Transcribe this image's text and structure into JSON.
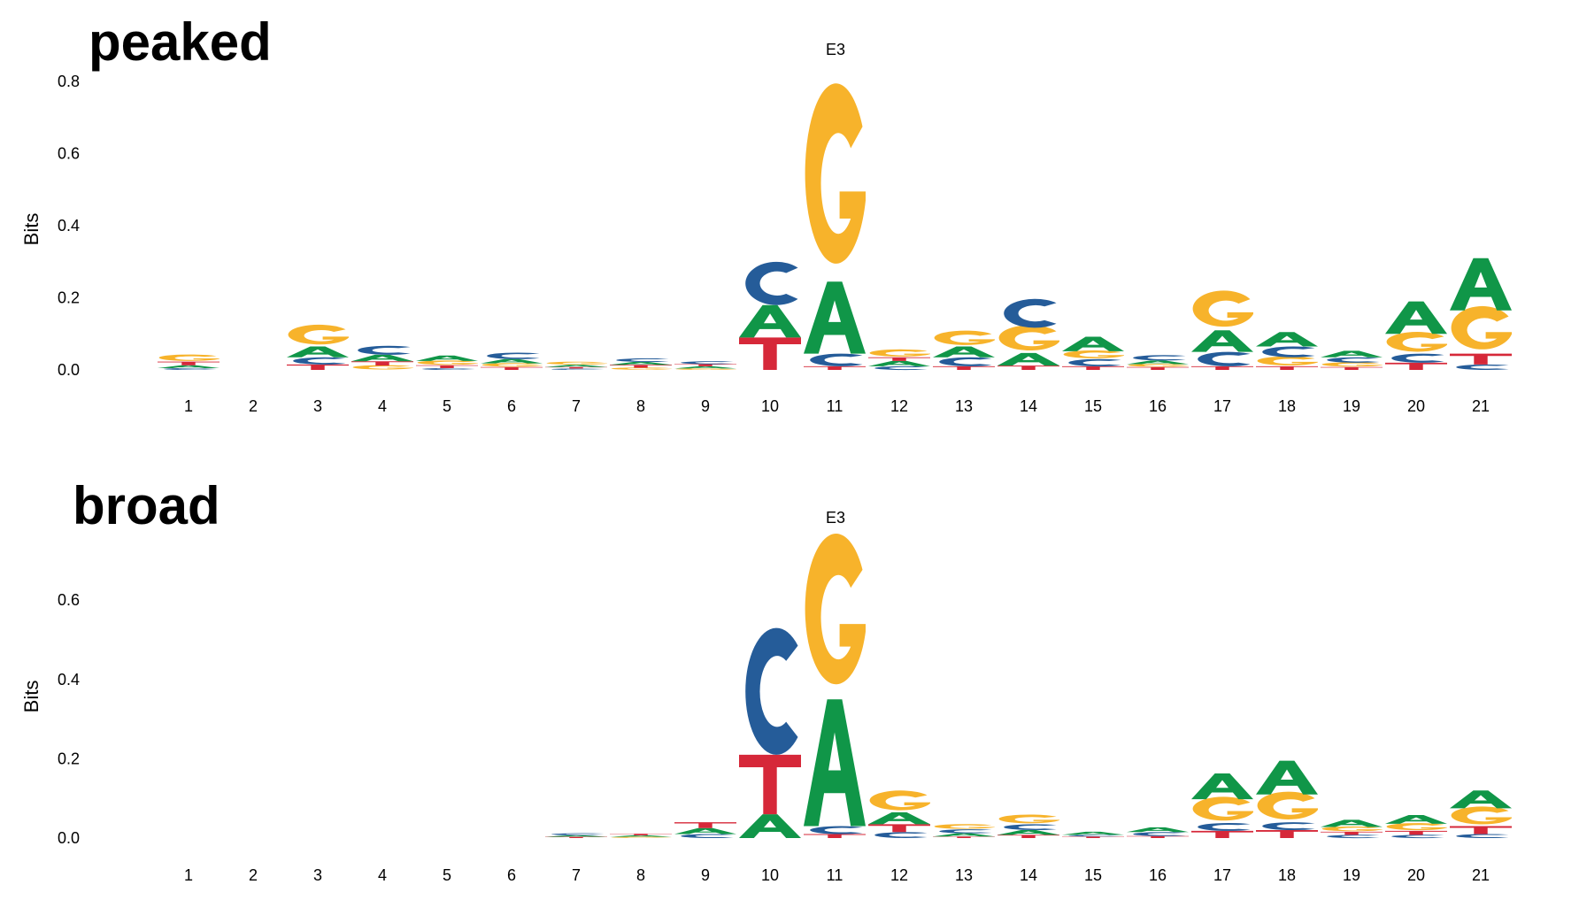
{
  "colors": {
    "A": "#109648",
    "C": "#255C99",
    "G": "#F7B32B",
    "T": "#D62839"
  },
  "chart_data": [
    {
      "type": "sequence-logo",
      "panel_label": "peaked",
      "title": "E3",
      "ylabel": "Bits",
      "ylim": [
        0,
        0.83
      ],
      "yticks": [
        "0.0",
        "0.2",
        "0.4",
        "0.6",
        "0.8"
      ],
      "ytick_values": [
        0,
        0.2,
        0.4,
        0.6,
        0.8
      ],
      "positions": [
        "1",
        "2",
        "3",
        "4",
        "5",
        "6",
        "7",
        "8",
        "9",
        "10",
        "11",
        "12",
        "13",
        "14",
        "15",
        "16",
        "17",
        "18",
        "19",
        "20",
        "21"
      ],
      "stacks": [
        [
          {
            "b": "C",
            "h": 0.005
          },
          {
            "b": "A",
            "h": 0.008
          },
          {
            "b": "T",
            "h": 0.01
          },
          {
            "b": "G",
            "h": 0.018
          }
        ],
        [],
        [
          {
            "b": "T",
            "h": 0.015
          },
          {
            "b": "C",
            "h": 0.02
          },
          {
            "b": "A",
            "h": 0.03
          },
          {
            "b": "G",
            "h": 0.055
          }
        ],
        [
          {
            "b": "G",
            "h": 0.012
          },
          {
            "b": "T",
            "h": 0.012
          },
          {
            "b": "A",
            "h": 0.018
          },
          {
            "b": "C",
            "h": 0.025
          }
        ],
        [
          {
            "b": "C",
            "h": 0.005
          },
          {
            "b": "T",
            "h": 0.008
          },
          {
            "b": "G",
            "h": 0.012
          },
          {
            "b": "A",
            "h": 0.015
          }
        ],
        [
          {
            "b": "T",
            "h": 0.008
          },
          {
            "b": "G",
            "h": 0.01
          },
          {
            "b": "A",
            "h": 0.012
          },
          {
            "b": "C",
            "h": 0.018
          }
        ],
        [
          {
            "b": "C",
            "h": 0.004
          },
          {
            "b": "T",
            "h": 0.004
          },
          {
            "b": "A",
            "h": 0.006
          },
          {
            "b": "G",
            "h": 0.008
          }
        ],
        [
          {
            "b": "G",
            "h": 0.006
          },
          {
            "b": "T",
            "h": 0.008
          },
          {
            "b": "A",
            "h": 0.008
          },
          {
            "b": "C",
            "h": 0.01
          }
        ],
        [
          {
            "b": "G",
            "h": 0.004
          },
          {
            "b": "A",
            "h": 0.006
          },
          {
            "b": "T",
            "h": 0.006
          },
          {
            "b": "C",
            "h": 0.008
          }
        ],
        [
          {
            "b": "T",
            "h": 0.09
          },
          {
            "b": "A",
            "h": 0.09
          },
          {
            "b": "C",
            "h": 0.12
          }
        ],
        [
          {
            "b": "T",
            "h": 0.01
          },
          {
            "b": "C",
            "h": 0.035
          },
          {
            "b": "A",
            "h": 0.2
          },
          {
            "b": "G",
            "h": 0.5
          }
        ],
        [
          {
            "b": "C",
            "h": 0.01
          },
          {
            "b": "A",
            "h": 0.015
          },
          {
            "b": "T",
            "h": 0.01
          },
          {
            "b": "G",
            "h": 0.02
          }
        ],
        [
          {
            "b": "T",
            "h": 0.01
          },
          {
            "b": "C",
            "h": 0.025
          },
          {
            "b": "A",
            "h": 0.03
          },
          {
            "b": "G",
            "h": 0.04
          }
        ],
        [
          {
            "b": "T",
            "h": 0.012
          },
          {
            "b": "A",
            "h": 0.035
          },
          {
            "b": "G",
            "h": 0.07
          },
          {
            "b": "C",
            "h": 0.08
          }
        ],
        [
          {
            "b": "T",
            "h": 0.01
          },
          {
            "b": "C",
            "h": 0.02
          },
          {
            "b": "G",
            "h": 0.022
          },
          {
            "b": "A",
            "h": 0.04
          }
        ],
        [
          {
            "b": "T",
            "h": 0.008
          },
          {
            "b": "G",
            "h": 0.008
          },
          {
            "b": "A",
            "h": 0.01
          },
          {
            "b": "C",
            "h": 0.015
          }
        ],
        [
          {
            "b": "T",
            "h": 0.01
          },
          {
            "b": "C",
            "h": 0.04
          },
          {
            "b": "A",
            "h": 0.06
          },
          {
            "b": "G",
            "h": 0.1
          }
        ],
        [
          {
            "b": "T",
            "h": 0.01
          },
          {
            "b": "G",
            "h": 0.025
          },
          {
            "b": "C",
            "h": 0.03
          },
          {
            "b": "A",
            "h": 0.04
          }
        ],
        [
          {
            "b": "T",
            "h": 0.008
          },
          {
            "b": "G",
            "h": 0.012
          },
          {
            "b": "C",
            "h": 0.015
          },
          {
            "b": "A",
            "h": 0.018
          }
        ],
        [
          {
            "b": "T",
            "h": 0.02
          },
          {
            "b": "C",
            "h": 0.025
          },
          {
            "b": "G",
            "h": 0.055
          },
          {
            "b": "A",
            "h": 0.09
          }
        ],
        [
          {
            "b": "C",
            "h": 0.015
          },
          {
            "b": "T",
            "h": 0.03
          },
          {
            "b": "G",
            "h": 0.12
          },
          {
            "b": "A",
            "h": 0.145
          }
        ]
      ]
    },
    {
      "type": "sequence-logo",
      "panel_label": "broad",
      "title": "E3",
      "ylabel": "Bits",
      "ylim": [
        0,
        0.73
      ],
      "yticks": [
        "0.0",
        "0.2",
        "0.4",
        "0.6"
      ],
      "ytick_values": [
        0,
        0.2,
        0.4,
        0.6
      ],
      "positions": [
        "1",
        "2",
        "3",
        "4",
        "5",
        "6",
        "7",
        "8",
        "9",
        "10",
        "11",
        "12",
        "13",
        "14",
        "15",
        "16",
        "17",
        "18",
        "19",
        "20",
        "21"
      ],
      "stacks": [
        [],
        [],
        [],
        [],
        [],
        [],
        [
          {
            "b": "T",
            "h": 0.003
          },
          {
            "b": "A",
            "h": 0.004
          },
          {
            "b": "C",
            "h": 0.005
          }
        ],
        [
          {
            "b": "G",
            "h": 0.003
          },
          {
            "b": "A",
            "h": 0.004
          },
          {
            "b": "T",
            "h": 0.004
          }
        ],
        [
          {
            "b": "C",
            "h": 0.01
          },
          {
            "b": "A",
            "h": 0.015
          },
          {
            "b": "T",
            "h": 0.015
          }
        ],
        [
          {
            "b": "A",
            "h": 0.06
          },
          {
            "b": "T",
            "h": 0.15
          },
          {
            "b": "C",
            "h": 0.32
          }
        ],
        [
          {
            "b": "T",
            "h": 0.01
          },
          {
            "b": "C",
            "h": 0.02
          },
          {
            "b": "A",
            "h": 0.32
          },
          {
            "b": "G",
            "h": 0.38
          }
        ],
        [
          {
            "b": "C",
            "h": 0.015
          },
          {
            "b": "T",
            "h": 0.02
          },
          {
            "b": "A",
            "h": 0.03
          },
          {
            "b": "G",
            "h": 0.05
          }
        ],
        [
          {
            "b": "T",
            "h": 0.004
          },
          {
            "b": "A",
            "h": 0.008
          },
          {
            "b": "C",
            "h": 0.01
          },
          {
            "b": "G",
            "h": 0.012
          }
        ],
        [
          {
            "b": "T",
            "h": 0.008
          },
          {
            "b": "A",
            "h": 0.012
          },
          {
            "b": "C",
            "h": 0.015
          },
          {
            "b": "G",
            "h": 0.022
          }
        ],
        [
          {
            "b": "T",
            "h": 0.004
          },
          {
            "b": "C",
            "h": 0.004
          },
          {
            "b": "A",
            "h": 0.008
          }
        ],
        [
          {
            "b": "T",
            "h": 0.005
          },
          {
            "b": "C",
            "h": 0.01
          },
          {
            "b": "A",
            "h": 0.012
          }
        ],
        [
          {
            "b": "T",
            "h": 0.018
          },
          {
            "b": "C",
            "h": 0.02
          },
          {
            "b": "G",
            "h": 0.06
          },
          {
            "b": "A",
            "h": 0.065
          }
        ],
        [
          {
            "b": "T",
            "h": 0.02
          },
          {
            "b": "C",
            "h": 0.02
          },
          {
            "b": "G",
            "h": 0.07
          },
          {
            "b": "A",
            "h": 0.085
          }
        ],
        [
          {
            "b": "C",
            "h": 0.008
          },
          {
            "b": "T",
            "h": 0.008
          },
          {
            "b": "G",
            "h": 0.012
          },
          {
            "b": "A",
            "h": 0.018
          }
        ],
        [
          {
            "b": "C",
            "h": 0.008
          },
          {
            "b": "T",
            "h": 0.01
          },
          {
            "b": "G",
            "h": 0.018
          },
          {
            "b": "A",
            "h": 0.022
          }
        ],
        [
          {
            "b": "C",
            "h": 0.01
          },
          {
            "b": "T",
            "h": 0.02
          },
          {
            "b": "G",
            "h": 0.045
          },
          {
            "b": "A",
            "h": 0.045
          }
        ]
      ]
    }
  ]
}
